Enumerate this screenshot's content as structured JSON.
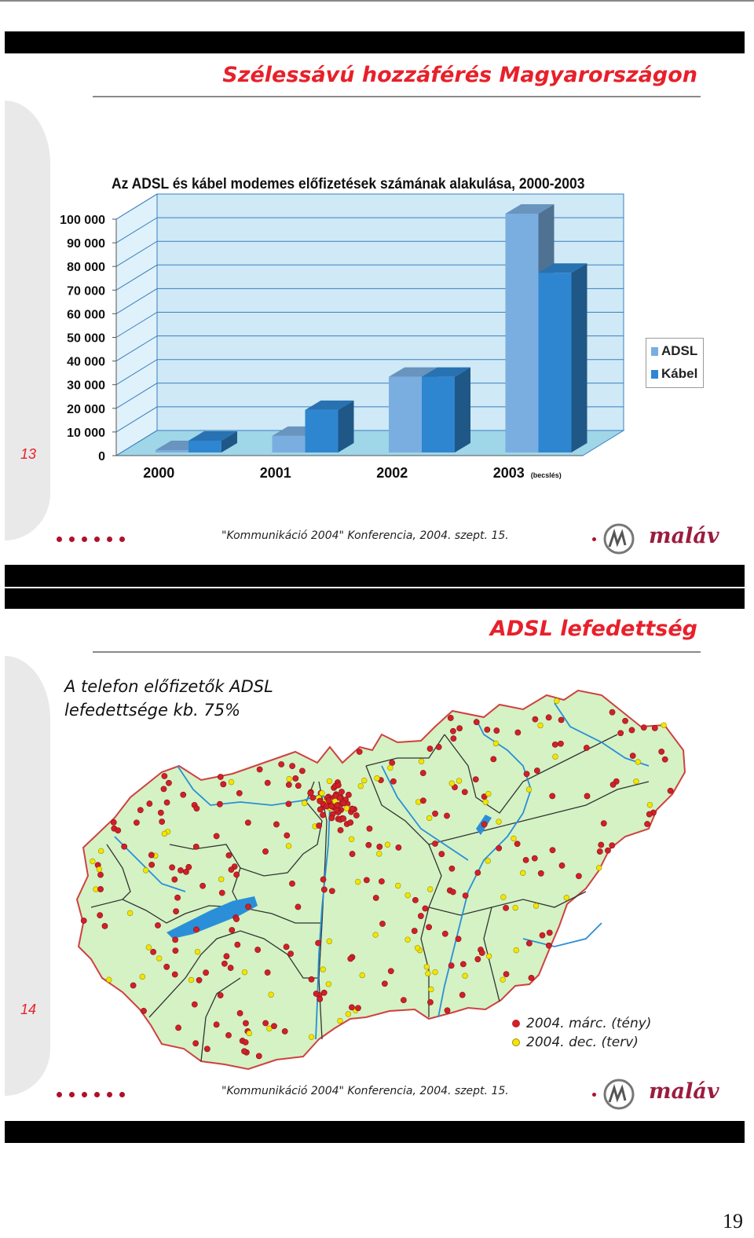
{
  "slides": [
    {
      "title": "Szélessávú hozzáférés Magyarországon",
      "slide_number": "13",
      "footer": "\"Kommunikáció 2004\" Konferencia, 2004. szept. 15.",
      "logo_text": "maláv"
    },
    {
      "title": "ADSL lefedettség",
      "slide_number": "14",
      "caption_line1": "A telefon előfizetők ADSL",
      "caption_line2": "lefedettsége kb. 75%",
      "footer": "\"Kommunikáció 2004\" Konferencia, 2004. szept. 15.",
      "logo_text": "maláv",
      "legend": [
        {
          "label": "2004. márc. (tény)",
          "color": "#d0202a"
        },
        {
          "label": "2004. dec. (terv)",
          "color": "#f2e600"
        }
      ]
    }
  ],
  "chart_data": {
    "type": "bar",
    "title": "Az ADSL és kábel modemes előfizetések számának alakulása, 2000-2003",
    "categories": [
      "2000",
      "2001",
      "2002",
      "2003"
    ],
    "category_notes": [
      "",
      "",
      "",
      "(becslés)"
    ],
    "series": [
      {
        "name": "ADSL",
        "values": [
          1000,
          7000,
          32000,
          101000
        ],
        "color": "#7aaee0"
      },
      {
        "name": "Kábel",
        "values": [
          5000,
          18000,
          32000,
          76000
        ],
        "color": "#2f86d0"
      }
    ],
    "ylim": [
      0,
      100000
    ],
    "yticks": [
      "0",
      "10 000",
      "20 000",
      "30 000",
      "40 000",
      "50 000",
      "60 000",
      "70 000",
      "80 000",
      "90 000",
      "100 000"
    ],
    "grid": true,
    "legend_position": "right"
  },
  "page_number": "19",
  "colors": {
    "accent": "#e8202a",
    "map_land": "#d4f2c4",
    "water": "#2a8fd8"
  }
}
